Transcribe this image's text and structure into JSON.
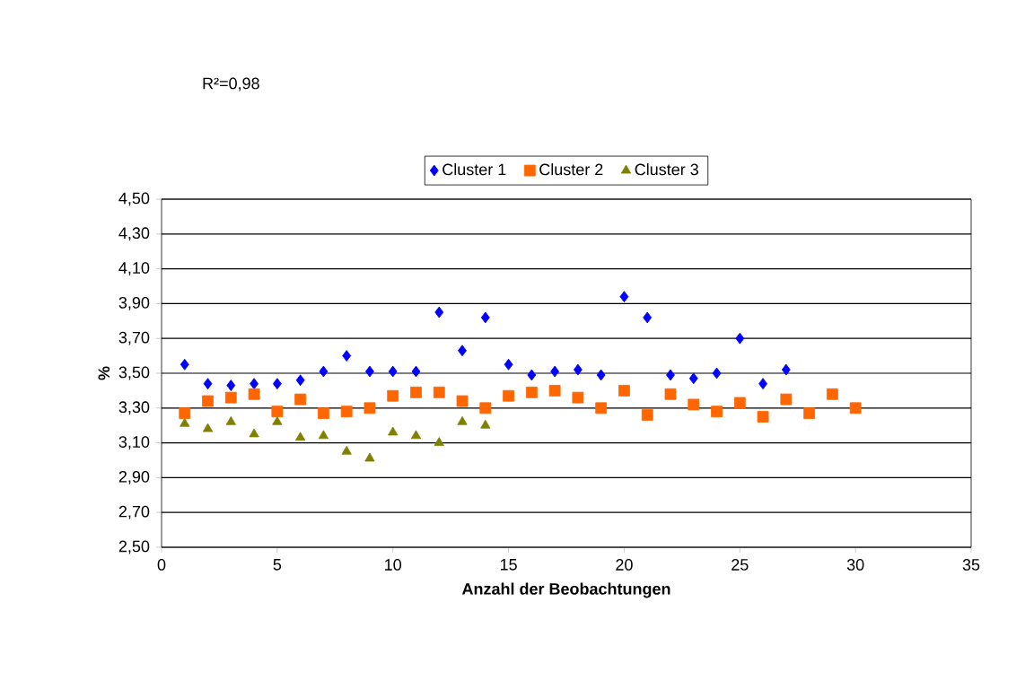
{
  "chart_data": {
    "type": "scatter",
    "xlabel": "Anzahl der Beobachtungen",
    "ylabel": "%",
    "annotations": [
      "R²=0,98"
    ],
    "legend": "top",
    "grid": "y",
    "xlim": [
      0,
      35
    ],
    "xticks": [
      0,
      5,
      10,
      15,
      20,
      25,
      30,
      35
    ],
    "ylim": [
      2.5,
      4.5
    ],
    "yticks": [
      {
        "value": 2.5,
        "label": "2,50"
      },
      {
        "value": 2.7,
        "label": "2,70"
      },
      {
        "value": 2.9,
        "label": "2,90"
      },
      {
        "value": 3.1,
        "label": "3,10"
      },
      {
        "value": 3.3,
        "label": "3,30"
      },
      {
        "value": 3.5,
        "label": "3,50"
      },
      {
        "value": 3.7,
        "label": "3,70"
      },
      {
        "value": 3.9,
        "label": "3,90"
      },
      {
        "value": 4.1,
        "label": "4,10"
      },
      {
        "value": 4.3,
        "label": "4,30"
      },
      {
        "value": 4.5,
        "label": "4,50"
      }
    ],
    "series": [
      {
        "name": "Cluster 1",
        "color": "#0000ff",
        "marker": "diamond",
        "x": [
          1,
          2,
          3,
          4,
          5,
          6,
          7,
          8,
          9,
          10,
          11,
          12,
          13,
          14,
          15,
          16,
          17,
          18,
          19,
          20,
          21,
          22,
          23,
          24,
          25,
          26,
          27
        ],
        "values": [
          3.55,
          3.44,
          3.43,
          3.44,
          3.44,
          3.46,
          3.51,
          3.6,
          3.51,
          3.51,
          3.51,
          3.85,
          3.63,
          3.82,
          3.55,
          3.49,
          3.51,
          3.52,
          3.49,
          3.94,
          3.82,
          3.49,
          3.47,
          3.5,
          3.7,
          3.44,
          3.52
        ]
      },
      {
        "name": "Cluster 2",
        "color": "#ff6600",
        "marker": "square",
        "x": [
          1,
          2,
          3,
          4,
          5,
          6,
          7,
          8,
          9,
          10,
          11,
          12,
          13,
          14,
          15,
          16,
          17,
          18,
          19,
          20,
          21,
          22,
          23,
          24,
          25,
          26,
          27,
          28,
          29,
          30
        ],
        "values": [
          3.27,
          3.34,
          3.36,
          3.38,
          3.28,
          3.35,
          3.27,
          3.28,
          3.3,
          3.37,
          3.39,
          3.39,
          3.34,
          3.3,
          3.37,
          3.39,
          3.4,
          3.36,
          3.3,
          3.4,
          3.26,
          3.38,
          3.32,
          3.28,
          3.33,
          3.25,
          3.35,
          3.27,
          3.38,
          3.3
        ]
      },
      {
        "name": "Cluster 3",
        "color": "#808000",
        "marker": "triangle",
        "x": [
          1,
          2,
          3,
          4,
          5,
          6,
          7,
          8,
          9,
          10,
          11,
          12,
          13,
          14
        ],
        "values": [
          3.21,
          3.18,
          3.22,
          3.15,
          3.22,
          3.13,
          3.14,
          3.05,
          3.01,
          3.16,
          3.14,
          3.1,
          3.22,
          3.2
        ]
      }
    ]
  }
}
